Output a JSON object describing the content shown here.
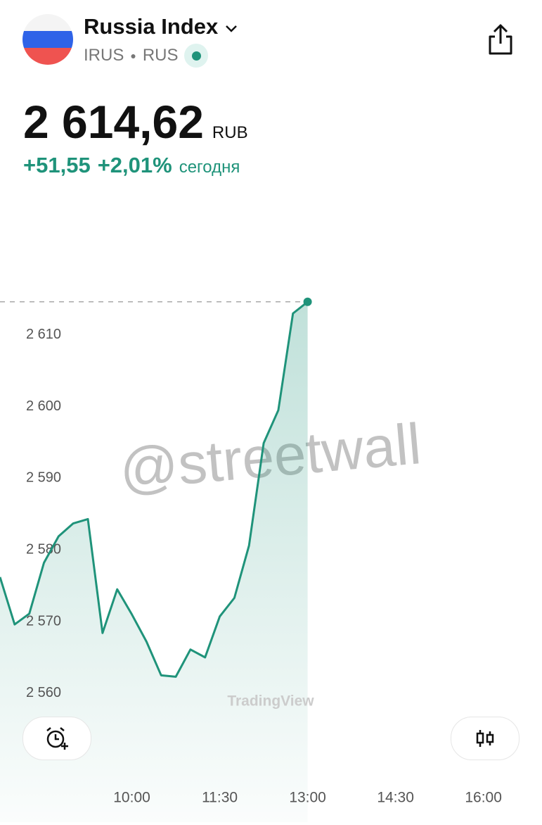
{
  "header": {
    "title": "Russia Index",
    "symbol": "IRUS",
    "exchange": "RUS",
    "price": "2 614,62",
    "currency": "RUB",
    "change": "+51,55",
    "change_pct": "+2,01%",
    "period": "сегодня"
  },
  "watermarks": {
    "user": "@streetwall",
    "provider": "TradingView"
  },
  "chart_data": {
    "type": "line",
    "color": "#1f937a",
    "x": [
      "07:45",
      "08:00",
      "08:15",
      "08:30",
      "08:45",
      "09:00",
      "09:15",
      "09:30",
      "09:45",
      "10:00",
      "10:15",
      "10:30",
      "10:45",
      "11:00",
      "11:15",
      "11:30",
      "11:45",
      "12:00",
      "12:15",
      "12:30",
      "12:45",
      "13:00"
    ],
    "values": [
      2576.2,
      2569.6,
      2571.1,
      2578.2,
      2581.9,
      2583.7,
      2584.3,
      2568.4,
      2574.5,
      2571.0,
      2567.2,
      2562.5,
      2562.3,
      2566.1,
      2565.0,
      2570.7,
      2573.3,
      2580.6,
      2594.9,
      2599.5,
      2613.0,
      2614.62
    ],
    "xlim": [
      "07:45",
      "17:00"
    ],
    "xticks": [
      "10:00",
      "11:30",
      "13:00",
      "14:30",
      "16:00"
    ],
    "ylim": [
      2542,
      2620
    ],
    "yticks": [
      {
        "value": 2560,
        "label": "2 560"
      },
      {
        "value": 2570,
        "label": "2 570"
      },
      {
        "value": 2580,
        "label": "2 580"
      },
      {
        "value": 2590,
        "label": "2 590"
      },
      {
        "value": 2600,
        "label": "2 600"
      },
      {
        "value": 2610,
        "label": "2 610"
      }
    ]
  }
}
